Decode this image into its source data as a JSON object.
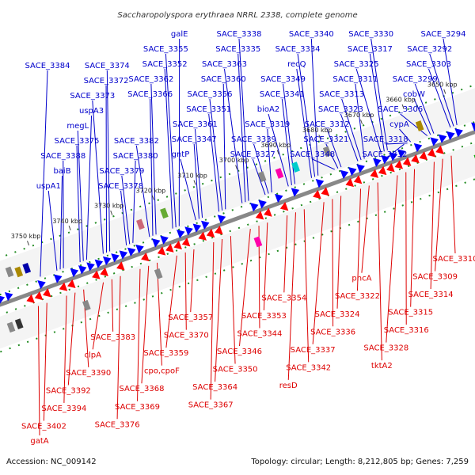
{
  "title": "Saccharopolyspora erythraea NRRL 2338, complete genome",
  "accession": "Accession: NC_009142",
  "topology": "Topology: circular; Length: 8,212,805 bp; Genes: 7,259",
  "colors": {
    "forward_label": "#0000cc",
    "reverse_label": "#dd0000",
    "forward_gene": "#0000ff",
    "reverse_gene": "#ff0000",
    "tick": "#228b22",
    "axis": "#777777"
  },
  "ticks": [
    "3650 kbp",
    "3660 kbp",
    "3670 kbp",
    "3680 kbp",
    "3690 kbp",
    "3700 kbp",
    "3710 kbp",
    "3720 kbp",
    "3730 kbp",
    "3740 kbp",
    "3750 kbp"
  ],
  "forward_labels": [
    "SACE_3294",
    "SACE_3292",
    "SACE_3303",
    "SACE_3299",
    "cobW",
    "SACE_3306",
    "cypA",
    "SACE_3318",
    "SACE_3332",
    "SACE_3330",
    "SACE_3317",
    "SACE_3325",
    "SACE_3311",
    "SACE_3313",
    "SACE_3323",
    "SACE_3312",
    "SACE_3321",
    "SACE_3348",
    "SACE_3340",
    "SACE_3334",
    "recQ",
    "SACE_3349",
    "SACE_3341",
    "bioA2",
    "SACE_3319",
    "SACE_3339",
    "SACE_3327",
    "SACE_3338",
    "SACE_3335",
    "SACE_3363",
    "SACE_3360",
    "SACE_3356",
    "SACE_3351",
    "SACE_3361",
    "SACE_3347",
    "gntP",
    "galE",
    "SACE_3355",
    "SACE_3352",
    "SACE_3362",
    "SACE_3366",
    "SACE_3382",
    "SACE_3380",
    "SACE_3379",
    "SACE_3378",
    "SACE_3374",
    "SACE_3372",
    "SACE_3373",
    "uspA3",
    "megL",
    "SACE_3375",
    "SACE_3388",
    "baiB",
    "uspA1",
    "SACE_3384"
  ],
  "reverse_labels": [
    "SACE_3310",
    "SACE_3309",
    "SACE_3314",
    "SACE_3315",
    "SACE_3316",
    "SACE_3328",
    "tktA2",
    "pncA",
    "SACE_3322",
    "SACE_3324",
    "SACE_3336",
    "SACE_3337",
    "SACE_3342",
    "resD",
    "SACE_3354",
    "SACE_3353",
    "SACE_3344",
    "SACE_3346",
    "SACE_3350",
    "SACE_3364",
    "SACE_3367",
    "SACE_3357",
    "SACE_3370",
    "SACE_3359",
    "cpo,cpoF",
    "SACE_3368",
    "SACE_3369",
    "SACE_3376",
    "SACE_3383",
    "clpA",
    "SACE_3390",
    "SACE_3392",
    "SACE_3394",
    "SACE_3402",
    "gatA"
  ]
}
